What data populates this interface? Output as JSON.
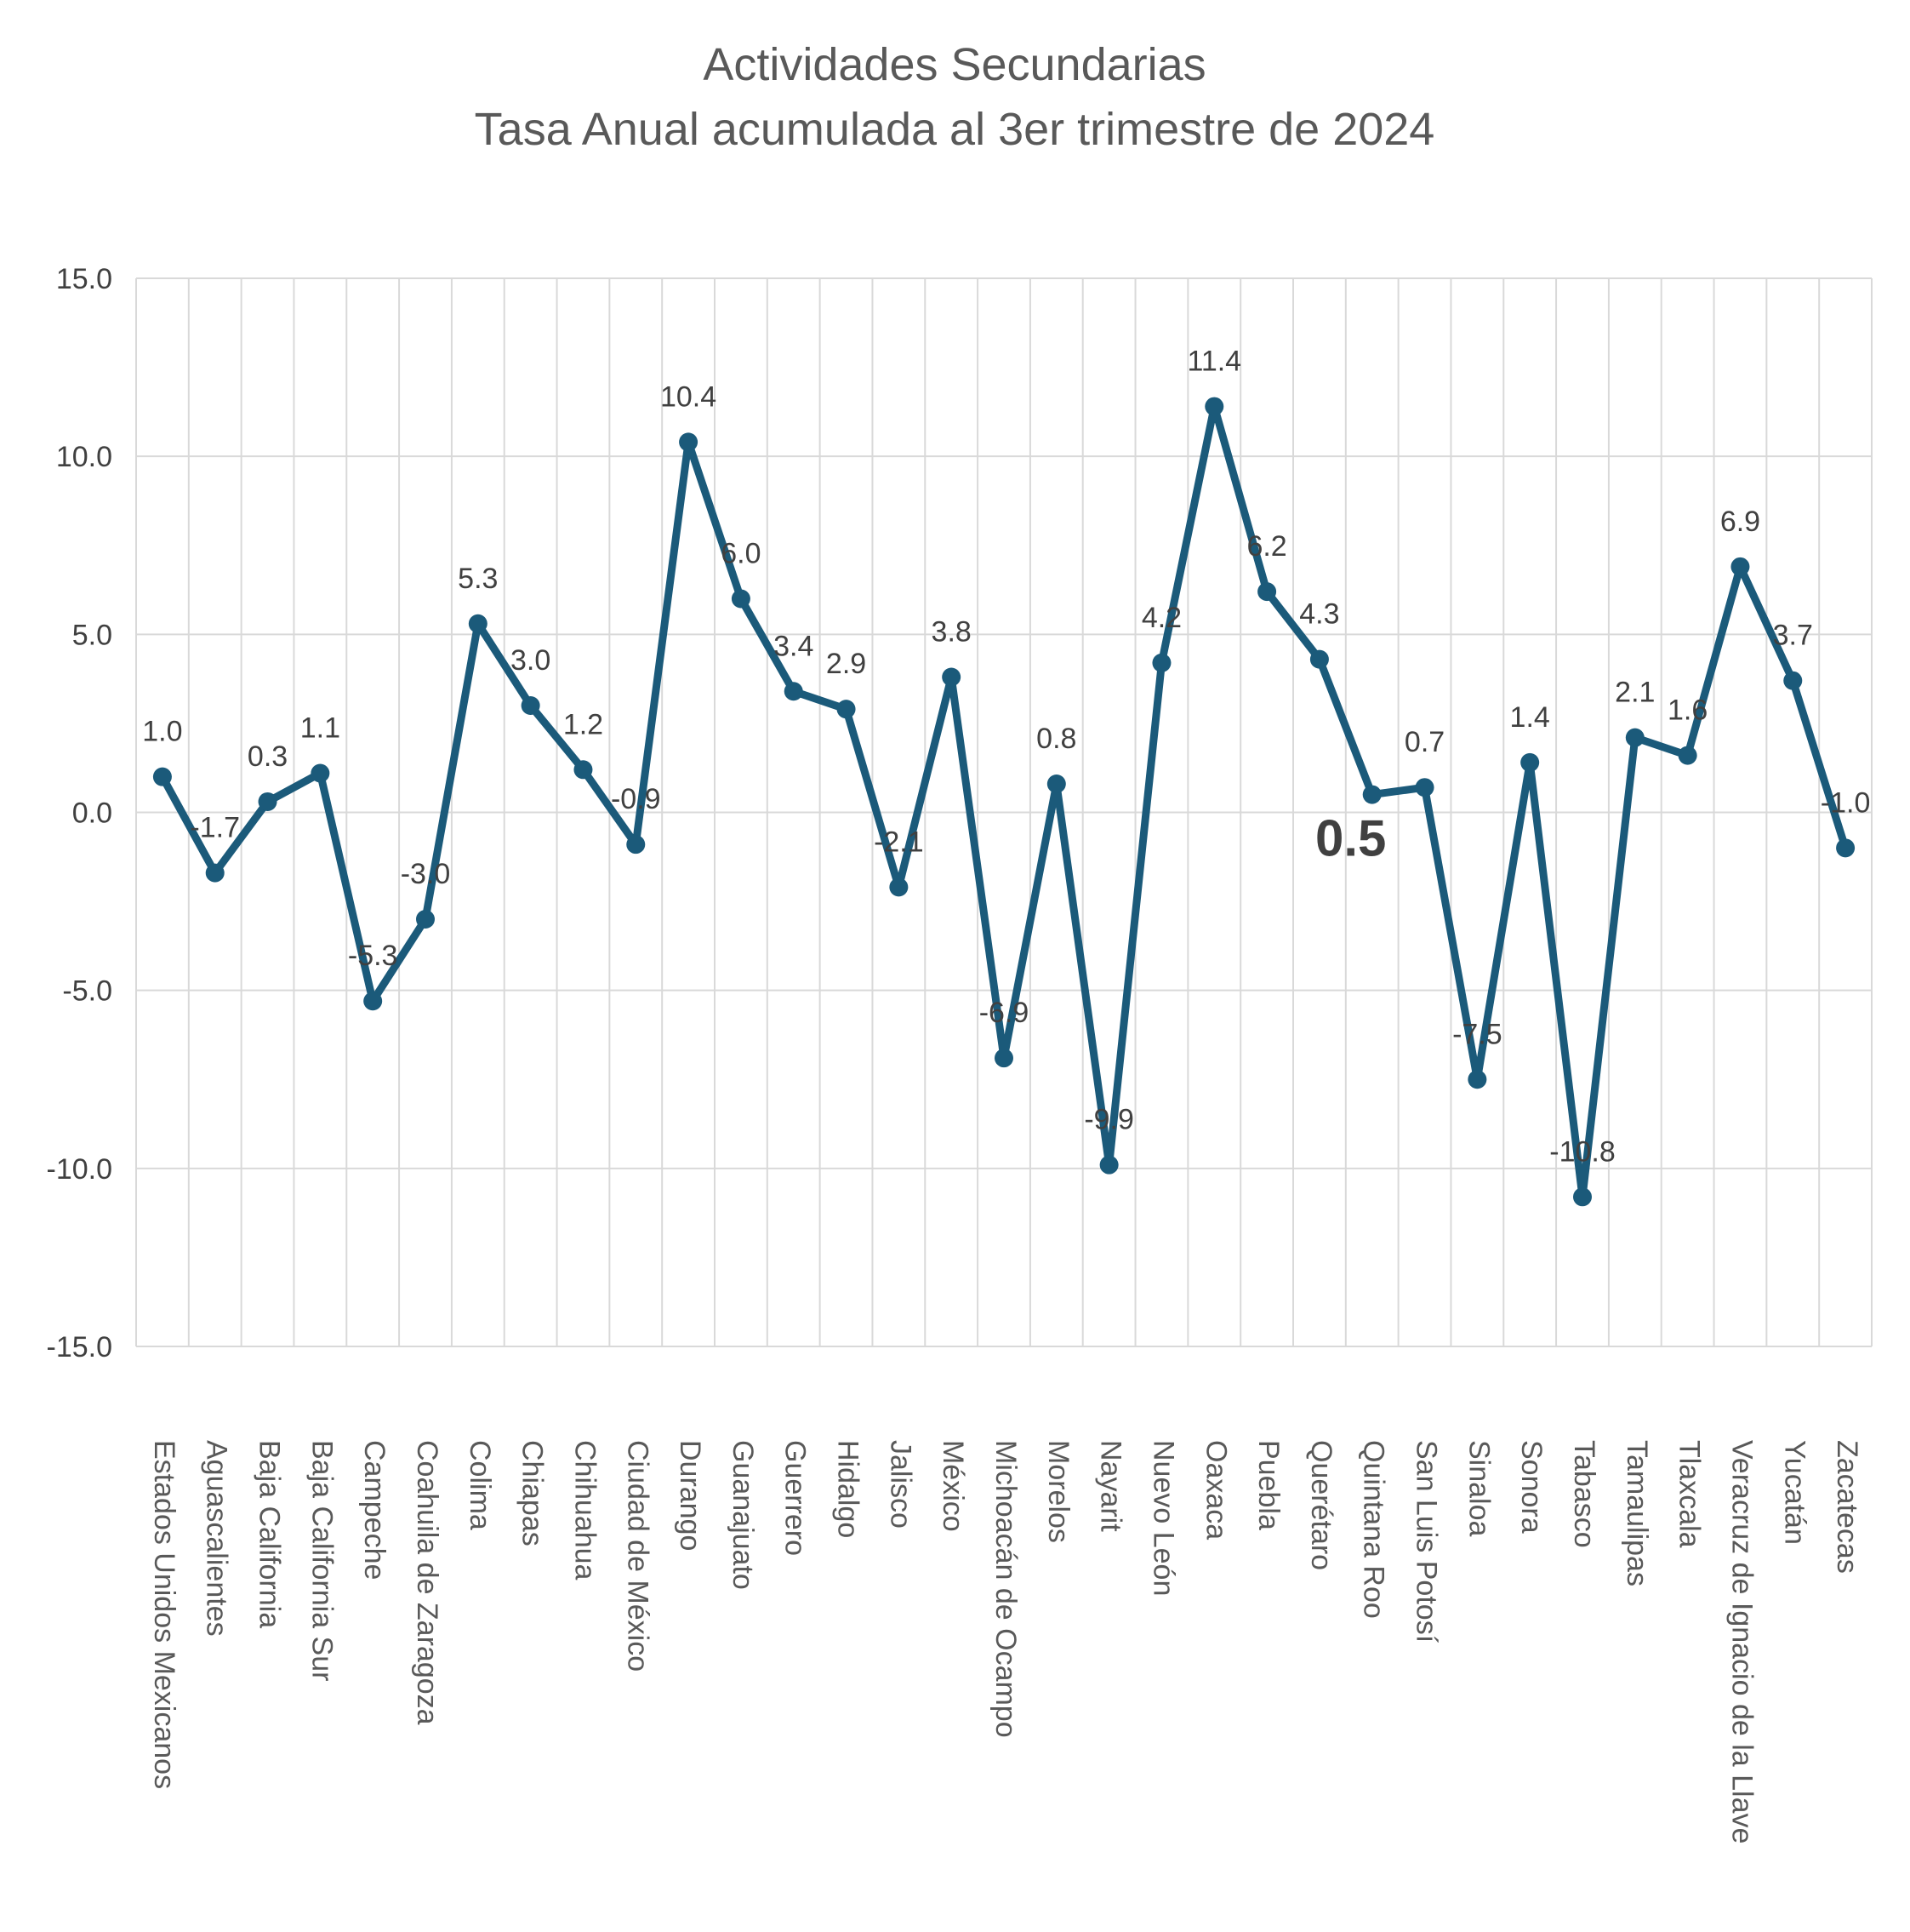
{
  "chart_data": {
    "type": "line",
    "title": "Actividades Secundarias",
    "subtitle": "Tasa Anual acumulada al 3er trimestre de 2024",
    "xlabel": "",
    "ylabel": "",
    "ylim": [
      -15,
      15
    ],
    "yticks": [
      15,
      10,
      5,
      0,
      -5,
      -10,
      -15
    ],
    "ytick_labels": [
      "15.0",
      "10.0",
      "5.0",
      "0.0",
      "-5.0",
      "-10.0",
      "-15.0"
    ],
    "grid": true,
    "legend": "none",
    "line_color": "#1B5A7A",
    "highlight_index": 23,
    "categories": [
      "Estados Unidos Mexicanos",
      "Aguascalientes",
      "Baja California",
      "Baja California Sur",
      "Campeche",
      "Coahuila de Zaragoza",
      "Colima",
      "Chiapas",
      "Chihuahua",
      "Ciudad de México",
      "Durango",
      "Guanajuato",
      "Guerrero",
      "Hidalgo",
      "Jalisco",
      "México",
      "Michoacán de Ocampo",
      "Morelos",
      "Nayarit",
      "Nuevo León",
      "Oaxaca",
      "Puebla",
      "Querétaro",
      "Quintana Roo",
      "San Luis Potosí",
      "Sinaloa",
      "Sonora",
      "Tabasco",
      "Tamaulipas",
      "Tlaxcala",
      "Veracruz de Ignacio de la Llave",
      "Yucatán",
      "Zacatecas"
    ],
    "values": [
      1.0,
      -1.7,
      0.3,
      1.1,
      -5.3,
      -3.0,
      5.3,
      3.0,
      1.2,
      -0.9,
      10.4,
      6.0,
      3.4,
      2.9,
      -2.1,
      3.8,
      -6.9,
      0.8,
      -9.9,
      4.2,
      11.4,
      6.2,
      4.3,
      0.5,
      0.7,
      -7.5,
      1.4,
      -10.8,
      2.1,
      1.6,
      6.9,
      3.7,
      -1.0
    ],
    "data_labels": [
      "1.0",
      "-1.7",
      "0.3",
      "1.1",
      "-5.3",
      "-3.0",
      "5.3",
      "3.0",
      "1.2",
      "-0.9",
      "10.4",
      "6.0",
      "3.4",
      "2.9",
      "-2.1",
      "3.8",
      "-6.9",
      "0.8",
      "-9.9",
      "4.2",
      "11.4",
      "6.2",
      "4.3",
      "0.5",
      "0.7",
      "-7.5",
      "1.4",
      "-10.8",
      "2.1",
      "1.6",
      "6.9",
      "3.7",
      "-1.0"
    ]
  }
}
